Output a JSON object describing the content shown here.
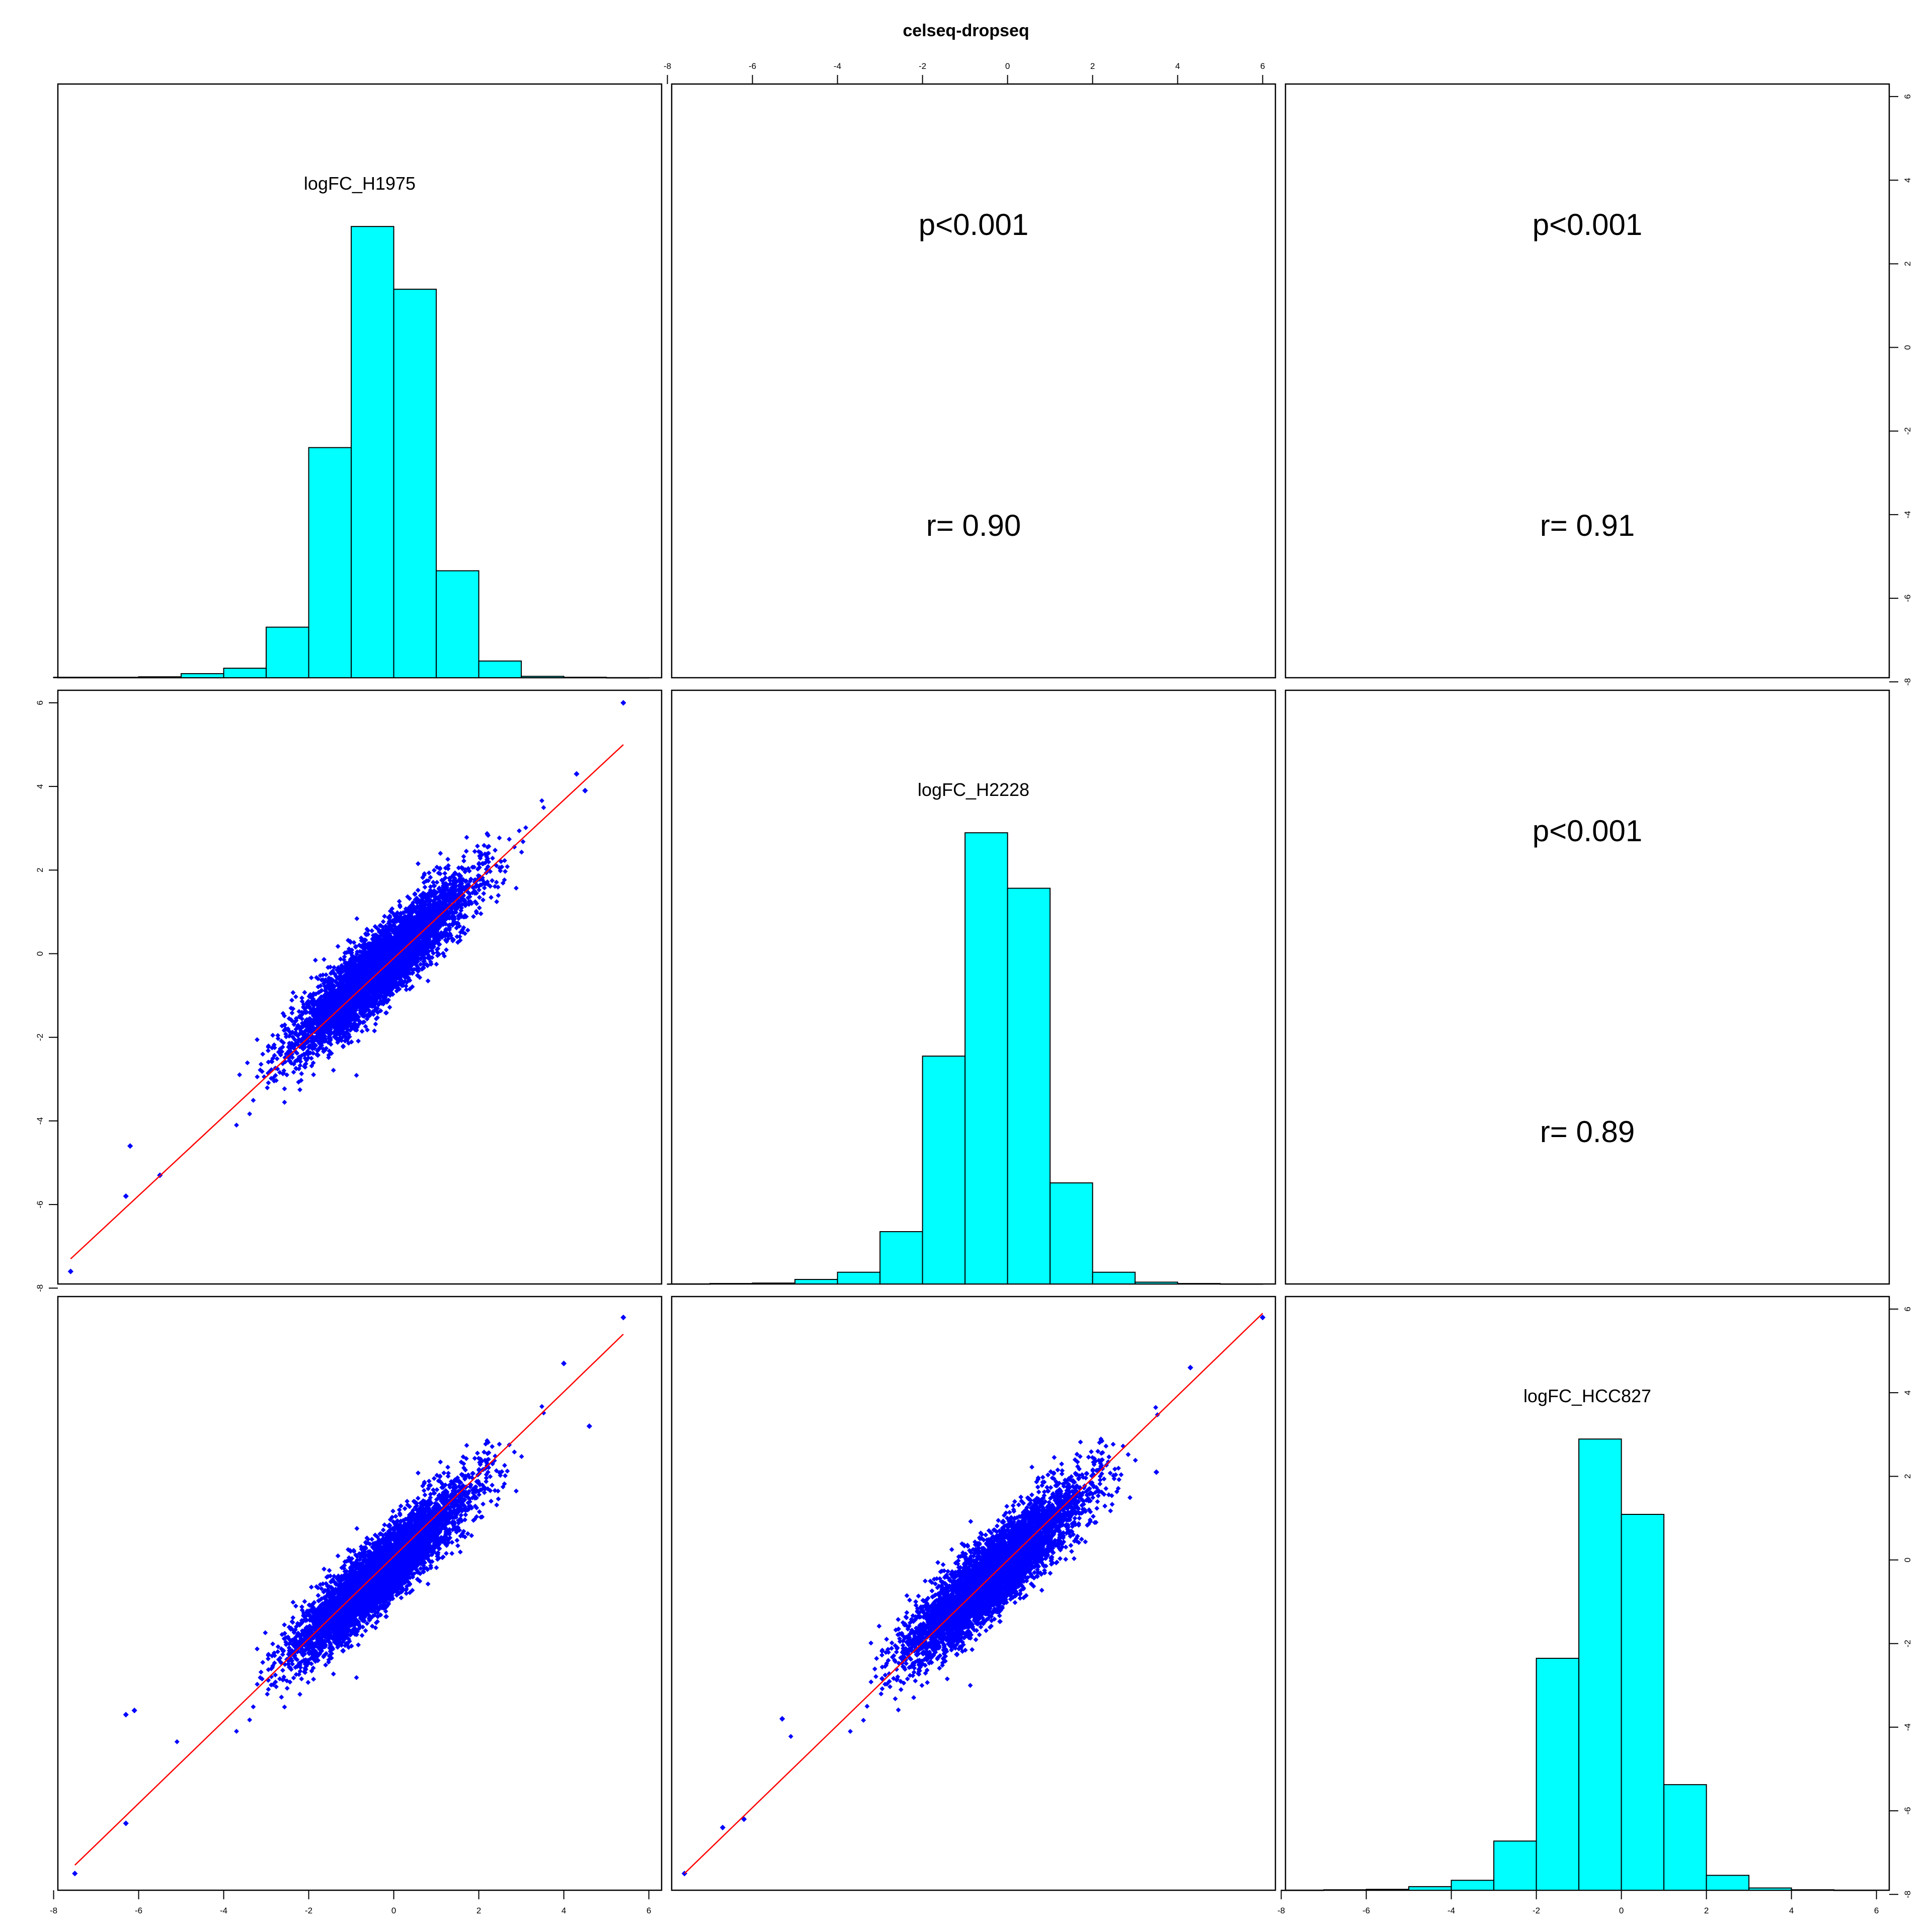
{
  "chart_data": {
    "type": "scatter",
    "title": "celseq-dropseq",
    "variables": [
      "logFC_H1975",
      "logFC_H2228",
      "logFC_HCC827"
    ],
    "axis_range": [
      -7.9,
      6.3
    ],
    "ticks": [
      -8,
      -6,
      -4,
      -2,
      0,
      2,
      4,
      6
    ],
    "tick_labels": [
      "-8",
      "-6",
      "-4",
      "-2",
      "0",
      "2",
      "4",
      "6"
    ],
    "histograms": [
      {
        "variable": "logFC_H1975",
        "breaks": [
          -8,
          -7,
          -6,
          -5,
          -4,
          -3,
          -2,
          -1,
          0,
          1,
          2,
          3,
          4,
          5,
          6
        ],
        "relative_heights": [
          0.001,
          0.001,
          0.002,
          0.009,
          0.021,
          0.112,
          0.51,
          1.0,
          0.861,
          0.237,
          0.037,
          0.003,
          0.001,
          0.0
        ]
      },
      {
        "variable": "logFC_H2228",
        "breaks": [
          -8,
          -7,
          -6,
          -5,
          -4,
          -3,
          -2,
          -1,
          0,
          1,
          2,
          3,
          4,
          5,
          6
        ],
        "relative_heights": [
          0.0,
          0.001,
          0.002,
          0.01,
          0.026,
          0.116,
          0.505,
          1.0,
          0.877,
          0.224,
          0.026,
          0.004,
          0.001,
          0.0
        ]
      },
      {
        "variable": "logFC_HCC827",
        "breaks": [
          -8,
          -7,
          -6,
          -5,
          -4,
          -3,
          -2,
          -1,
          0,
          1,
          2,
          3,
          4,
          5,
          6
        ],
        "relative_heights": [
          0.0,
          0.001,
          0.002,
          0.008,
          0.022,
          0.109,
          0.514,
          1.0,
          0.833,
          0.234,
          0.033,
          0.005,
          0.001,
          0.0
        ]
      }
    ],
    "correlations": [
      {
        "pair": [
          "logFC_H1975",
          "logFC_H2228"
        ],
        "p": "p<0.001",
        "r": "r= 0.90"
      },
      {
        "pair": [
          "logFC_H1975",
          "logFC_HCC827"
        ],
        "p": "p<0.001",
        "r": "r= 0.91"
      },
      {
        "pair": [
          "logFC_H2228",
          "logFC_HCC827"
        ],
        "p": "p<0.001",
        "r": "r= 0.89"
      }
    ],
    "scatter_panels": [
      {
        "x": "logFC_H1975",
        "y": "logFC_H2228",
        "fit_line": {
          "x": [
            -7.6,
            5.4
          ],
          "y": [
            -7.3,
            5.0
          ]
        },
        "extreme_points": [
          [
            -7.6,
            -7.6
          ],
          [
            5.4,
            6.0
          ],
          [
            -6.3,
            -5.8
          ],
          [
            -6.2,
            -4.6
          ],
          [
            4.3,
            4.3
          ],
          [
            4.5,
            3.9
          ],
          [
            -5.5,
            -5.3
          ]
        ]
      },
      {
        "x": "logFC_H1975",
        "y": "logFC_HCC827",
        "fit_line": {
          "x": [
            -7.5,
            5.4
          ],
          "y": [
            -7.3,
            5.4
          ]
        },
        "extreme_points": [
          [
            -7.5,
            -7.5
          ],
          [
            5.4,
            5.8
          ],
          [
            -6.3,
            -3.7
          ],
          [
            -6.1,
            -3.6
          ],
          [
            -6.3,
            -6.3
          ],
          [
            4.0,
            4.7
          ],
          [
            4.6,
            3.2
          ]
        ]
      },
      {
        "x": "logFC_H2228",
        "y": "logFC_HCC827",
        "fit_line": {
          "x": [
            -7.6,
            6.0
          ],
          "y": [
            -7.5,
            5.9
          ]
        },
        "extreme_points": [
          [
            -7.6,
            -7.5
          ],
          [
            6.0,
            5.8
          ],
          [
            -6.7,
            -6.4
          ],
          [
            -6.2,
            -6.2
          ],
          [
            4.3,
            4.6
          ],
          [
            3.5,
            2.1
          ],
          [
            -5.3,
            -3.8
          ]
        ]
      }
    ],
    "colors": {
      "histogram_fill": "#00ffff",
      "points": "#0000ff",
      "fit_line": "#ff0000",
      "frame": "#000000"
    }
  }
}
